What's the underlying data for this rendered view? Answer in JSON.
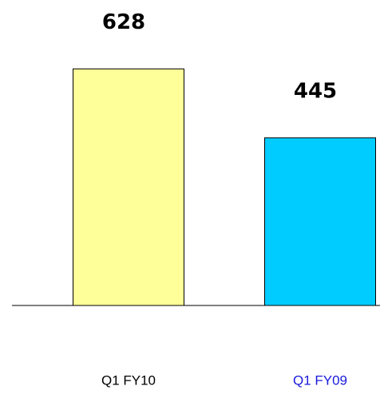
{
  "chart_data": {
    "type": "bar",
    "categories": [
      "Q1 FY10",
      "Q1 FY09"
    ],
    "values": [
      628,
      445
    ],
    "colors": [
      "#ffff99",
      "#00ccff"
    ],
    "category_colors": [
      "#000000",
      "#1a1adb"
    ],
    "ylim": [
      0,
      650
    ]
  }
}
